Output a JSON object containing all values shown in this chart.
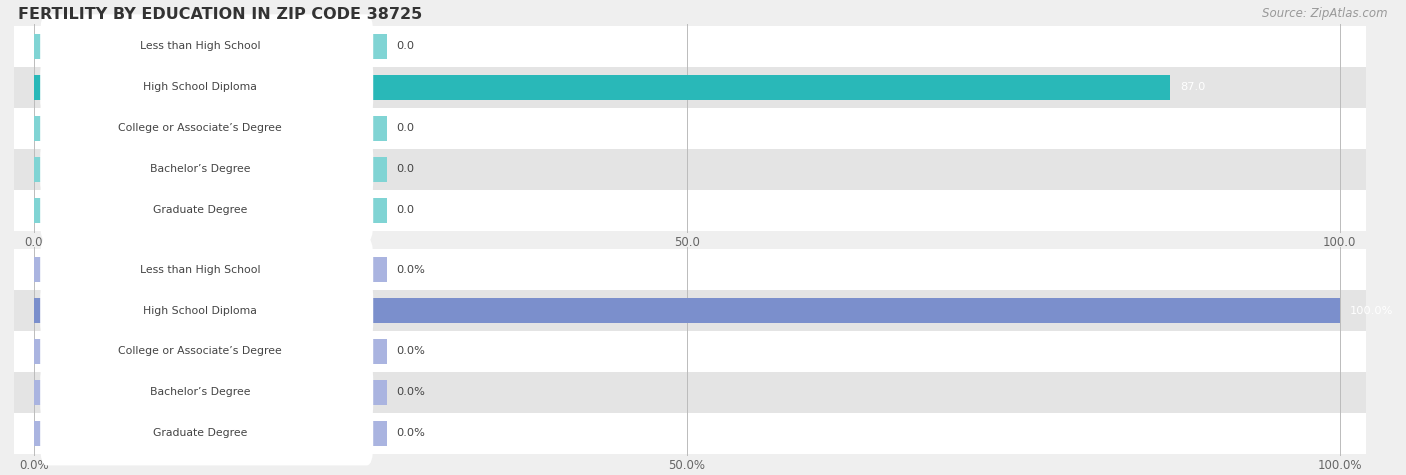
{
  "title": "FERTILITY BY EDUCATION IN ZIP CODE 38725",
  "source_text": "Source: ZipAtlas.com",
  "categories": [
    "Less than High School",
    "High School Diploma",
    "College or Associate’s Degree",
    "Bachelor’s Degree",
    "Graduate Degree"
  ],
  "chart1": {
    "values": [
      0.0,
      87.0,
      0.0,
      0.0,
      0.0
    ],
    "max_val": 100.0,
    "tick_vals": [
      0.0,
      50.0,
      100.0
    ],
    "tick_labels": [
      "0.0",
      "50.0",
      "100.0"
    ],
    "bar_color_main": "#29b8b8",
    "bar_color_light": "#80d4d4",
    "label_value_suffix": ""
  },
  "chart2": {
    "values": [
      0.0,
      100.0,
      0.0,
      0.0,
      0.0
    ],
    "max_val": 100.0,
    "tick_vals": [
      0.0,
      50.0,
      100.0
    ],
    "tick_labels": [
      "0.0%",
      "50.0%",
      "100.0%"
    ],
    "bar_color_main": "#7b8fcc",
    "bar_color_light": "#aab4e0",
    "label_value_suffix": "%"
  },
  "bg_color": "#efefef",
  "row_bg_color": "#e4e4e4",
  "label_bg_color": "#ffffff",
  "label_text_color": "#444444",
  "title_color": "#333333",
  "source_color": "#999999",
  "value_text_color": "#444444"
}
